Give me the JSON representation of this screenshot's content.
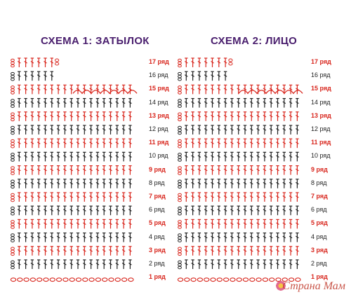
{
  "titles": {
    "scheme1": "СХЕМА 1: ЗАТЫЛОК",
    "scheme2": "СХЕМА 2: ЛИЦО"
  },
  "rows": [
    {
      "label": "17 ряд",
      "color": "red"
    },
    {
      "label": "16 ряд",
      "color": "black"
    },
    {
      "label": "15 ряд",
      "color": "red"
    },
    {
      "label": "14 ряд",
      "color": "black"
    },
    {
      "label": "13 ряд",
      "color": "red"
    },
    {
      "label": "12 ряд",
      "color": "black"
    },
    {
      "label": "11 ряд",
      "color": "red"
    },
    {
      "label": "10 ряд",
      "color": "black"
    },
    {
      "label": "9 ряд",
      "color": "red"
    },
    {
      "label": "8 ряд",
      "color": "black"
    },
    {
      "label": "7 ряд",
      "color": "red"
    },
    {
      "label": "6 ряд",
      "color": "black"
    },
    {
      "label": "5 ряд",
      "color": "red"
    },
    {
      "label": "4 ряд",
      "color": "black"
    },
    {
      "label": "3 ряд",
      "color": "red"
    },
    {
      "label": "2 ряд",
      "color": "black"
    },
    {
      "label": "1 ряд",
      "color": "red"
    }
  ],
  "colors": {
    "red": "#d8261d",
    "black": "#222222",
    "title": "#4a1f6e"
  },
  "watermark": "Страна Мам"
}
